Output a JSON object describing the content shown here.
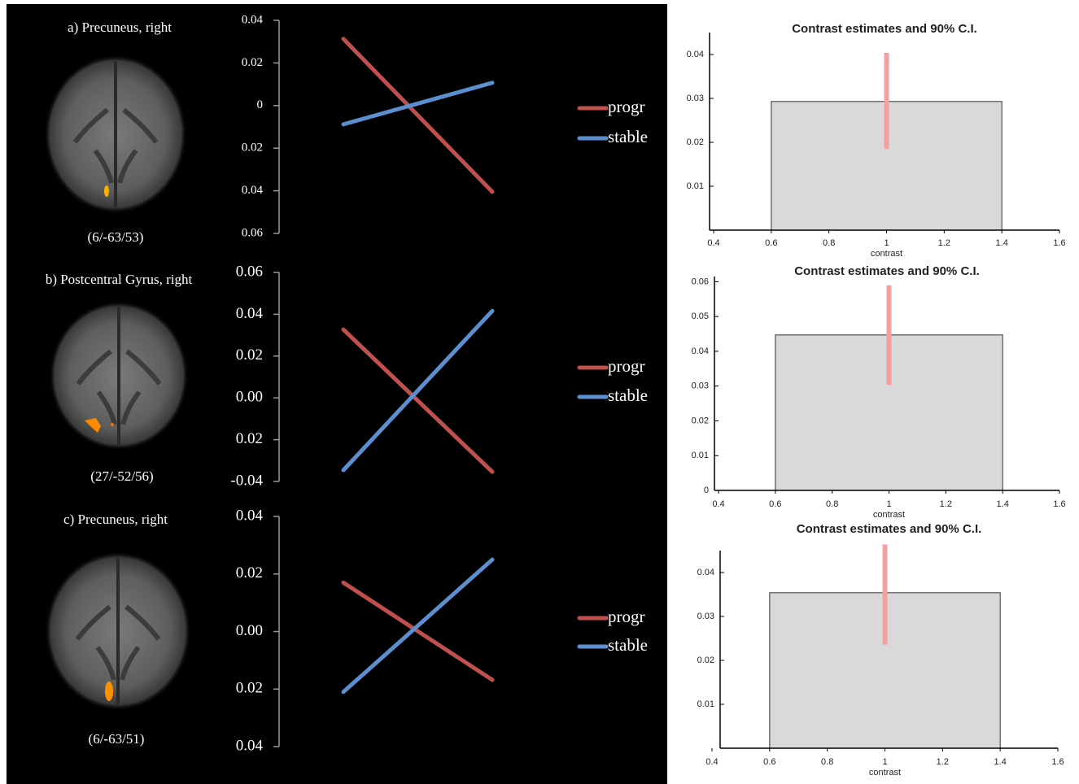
{
  "chart_data": [
    {
      "type": "image",
      "title": "a) Precuneus, right",
      "caption": "(6/-63/53)"
    },
    {
      "type": "line",
      "categories": [
        null,
        null
      ],
      "series": [
        {
          "name": "progr",
          "color": "#c0504d",
          "values": [
            0.0313,
            -0.0405
          ]
        },
        {
          "name": "stable",
          "color": "#5b8fd0",
          "values": [
            -0.0088,
            0.0107
          ]
        }
      ],
      "ylim": [
        -0.06,
        0.04
      ],
      "yticks": [
        0.04,
        0.02,
        0,
        {
          "value": -0.02,
          "label": "0.02"
        },
        {
          "value": -0.04,
          "label": "0.04"
        },
        {
          "value": -0.06,
          "label": "0.06"
        }
      ]
    },
    {
      "type": "bar",
      "title": "Contrast estimates and 90% C.I.",
      "xlabel": "contrast",
      "color": "#d9d9d9",
      "ci_color": "#f4a0a0",
      "x_edges": [
        0.6,
        1.4
      ],
      "values": [
        0.0293
      ],
      "ci": [
        [
          0.0185,
          0.0404
        ]
      ],
      "xlim": [
        0.4,
        1.6
      ],
      "xticks": [
        0.4,
        0.6,
        0.8,
        1,
        1.2,
        1.4,
        1.6
      ],
      "ylim": [
        0,
        0.045
      ],
      "yticks": [
        0.01,
        0.02,
        0.03,
        0.04
      ]
    },
    {
      "type": "image",
      "title": "b) Postcentral Gyrus, right",
      "caption": "(27/-52/56)"
    },
    {
      "type": "line",
      "categories": [
        null,
        null
      ],
      "series": [
        {
          "name": "progr",
          "color": "#c0504d",
          "values": [
            0.0327,
            -0.0354
          ]
        },
        {
          "name": "stable",
          "color": "#5b8fd0",
          "values": [
            -0.0346,
            0.0416
          ]
        }
      ],
      "ylim": [
        -0.04,
        0.06
      ],
      "yticks": [
        0.06,
        0.04,
        0.02,
        {
          "value": 0,
          "label": "0.00"
        },
        {
          "value": -0.02,
          "label": "0.02"
        },
        -0.04
      ]
    },
    {
      "type": "bar",
      "title": "Contrast estimates and 90% C.I.",
      "xlabel": "contrast",
      "color": "#d9d9d9",
      "ci_color": "#f4a0a0",
      "x_edges": [
        0.6,
        1.4
      ],
      "values": [
        0.0447
      ],
      "ci": [
        [
          0.0303,
          0.059
        ]
      ],
      "xlim": [
        0.4,
        1.6
      ],
      "xticks": [
        0.4,
        0.6,
        0.8,
        1,
        1.2,
        1.4,
        1.6
      ],
      "ylim": [
        0,
        0.0615
      ],
      "yticks": [
        0,
        0.01,
        0.02,
        0.03,
        0.04,
        0.05,
        0.06
      ]
    },
    {
      "type": "image",
      "title": "c) Precuneus, right",
      "caption": "(6/-63/51)"
    },
    {
      "type": "line",
      "categories": [
        null,
        null
      ],
      "series": [
        {
          "name": "progr",
          "color": "#c0504d",
          "values": [
            0.017,
            -0.0168
          ]
        },
        {
          "name": "stable",
          "color": "#5b8fd0",
          "values": [
            -0.021,
            0.025
          ]
        }
      ],
      "ylim": [
        -0.04,
        0.04
      ],
      "yticks": [
        0.04,
        0.02,
        {
          "value": 0,
          "label": "0.00"
        },
        {
          "value": -0.02,
          "label": "0.02"
        },
        {
          "value": -0.04,
          "label": "0.04"
        }
      ]
    },
    {
      "type": "bar",
      "title": "Contrast estimates and 90% C.I.",
      "xlabel": "contrast",
      "color": "#d9d9d9",
      "ci_color": "#f4a0a0",
      "x_edges": [
        0.6,
        1.4
      ],
      "values": [
        0.0354
      ],
      "ci": [
        [
          0.0236,
          0.0464
        ]
      ],
      "xlim": [
        0.4,
        1.6
      ],
      "xticks": [
        0.4,
        0.6,
        0.8,
        1,
        1.2,
        1.4,
        1.6
      ],
      "ylim": [
        0,
        0.045
      ],
      "yticks": [
        0.01,
        0.02,
        0.03,
        0.04
      ]
    }
  ]
}
